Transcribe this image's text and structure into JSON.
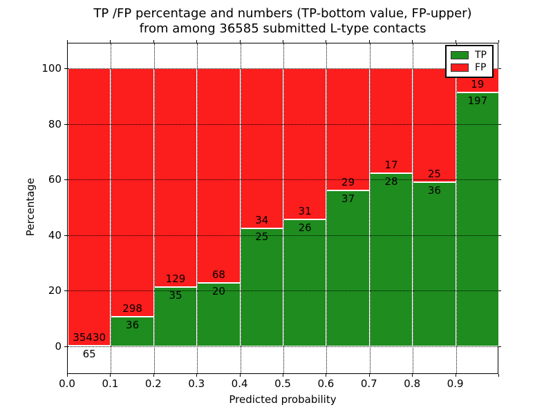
{
  "figure": {
    "title_line1": "TP /FP percentage and numbers (TP-bottom value, FP-upper)",
    "title_line2": "from among 36585 submitted L-type contacts"
  },
  "chart_data": {
    "type": "bar",
    "stacked": true,
    "title": "TP /FP percentage and numbers (TP-bottom value, FP-upper)\nfrom among 36585 submitted L-type contacts",
    "xlabel": "Predicted probability",
    "ylabel": "Percentage",
    "x_bin_edges": [
      0.0,
      0.1,
      0.2,
      0.3,
      0.4,
      0.5,
      0.6,
      0.7,
      0.8,
      0.9,
      1.0
    ],
    "x_tick_labels": [
      "0.0",
      "0.1",
      "0.2",
      "0.3",
      "0.4",
      "0.5",
      "0.6",
      "0.7",
      "0.8",
      "0.9"
    ],
    "y_ticks": [
      0,
      20,
      40,
      60,
      80,
      100
    ],
    "y_tick_labels": [
      "0",
      "20",
      "40",
      "60",
      "80",
      "100"
    ],
    "xlim": [
      0.0,
      1.0
    ],
    "ylim": [
      -10,
      109
    ],
    "grid": true,
    "colors": {
      "tp": "#1e8c1e",
      "fp": "#fc1d1d",
      "bar_edge": "#ffffff",
      "grid": "#000000"
    },
    "legend": {
      "position": "upper-right",
      "entries": [
        {
          "label": "TP",
          "color": "#1e8c1e"
        },
        {
          "label": "FP",
          "color": "#fc1d1d"
        }
      ]
    },
    "series": [
      {
        "name": "TP",
        "color": "#1e8c1e",
        "counts": [
          65,
          36,
          35,
          20,
          25,
          26,
          37,
          28,
          36,
          197
        ],
        "percent": [
          0.18,
          10.78,
          21.34,
          22.73,
          42.37,
          45.61,
          56.06,
          62.22,
          59.02,
          91.2
        ]
      },
      {
        "name": "FP",
        "color": "#fc1d1d",
        "counts": [
          35430,
          298,
          129,
          68,
          34,
          31,
          29,
          17,
          25,
          19
        ],
        "percent": [
          99.82,
          89.22,
          78.66,
          77.27,
          57.63,
          54.39,
          43.94,
          37.78,
          40.98,
          8.8
        ]
      }
    ]
  }
}
